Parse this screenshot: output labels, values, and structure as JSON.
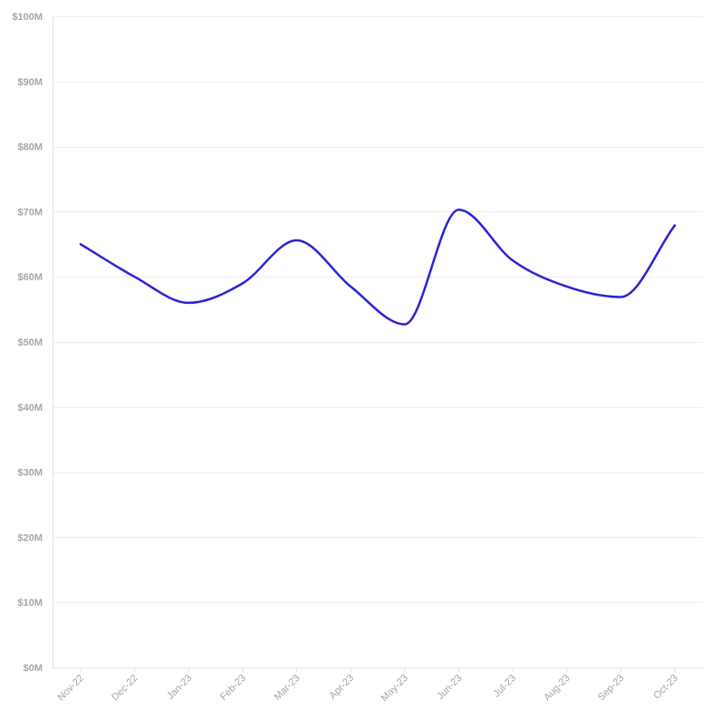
{
  "chart_data": {
    "type": "line",
    "x": [
      "Nov-22",
      "Dec-22",
      "Jan-23",
      "Feb-23",
      "Mar-23",
      "Apr-23",
      "May-23",
      "Jun-23",
      "Jul-23",
      "Aug-23",
      "Sep-23",
      "Oct-23"
    ],
    "series": [
      {
        "values": [
          65.0,
          60.0,
          56.0,
          59.0,
          65.6,
          58.5,
          52.7,
          70.3,
          62.5,
          58.5,
          56.9,
          67.9
        ],
        "color": "#2b22d6"
      }
    ],
    "ylim": [
      0,
      100
    ],
    "yticks": [
      0,
      10,
      20,
      30,
      40,
      50,
      60,
      70,
      80,
      90,
      100
    ],
    "ytick_labels": [
      "$0M",
      "$10M",
      "$20M",
      "$30M",
      "$40M",
      "$50M",
      "$60M",
      "$70M",
      "$80M",
      "$90M",
      "$100M"
    ],
    "title": "",
    "xlabel": "",
    "ylabel": "",
    "grid": true,
    "legend": "none",
    "smooth": true
  }
}
